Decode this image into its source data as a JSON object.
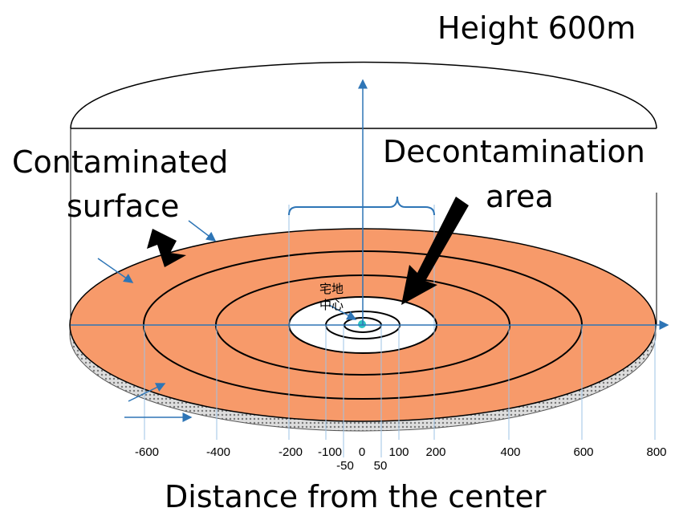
{
  "height_label": "Height 600m",
  "contaminated_label": [
    "Contaminated",
    "surface"
  ],
  "decon_label": [
    "Decontamination",
    "area"
  ],
  "center_label": [
    "宅地",
    "中心"
  ],
  "axis_ticks": [
    "-600",
    "-400",
    "-200",
    "-100",
    "0",
    "100",
    "200",
    "400",
    "600",
    "800"
  ],
  "inner_ticks": [
    "-50",
    "50"
  ],
  "x_axis_title": "Distance from the center"
}
